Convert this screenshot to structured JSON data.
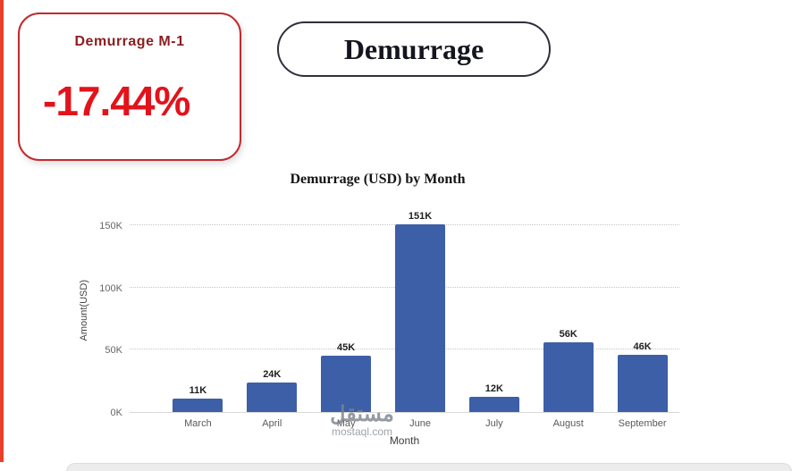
{
  "kpi_card": {
    "title": "Demurrage M-1",
    "value": "-17.44%"
  },
  "header": {
    "title": "Demurrage"
  },
  "watermark": {
    "name": "مستقل",
    "domain": "mostaql.com"
  },
  "chart_data": {
    "type": "bar",
    "title": "Demurrage (USD) by Month",
    "xlabel": "Month",
    "ylabel": "Amount(USD)",
    "categories": [
      "March",
      "April",
      "May",
      "June",
      "July",
      "August",
      "September"
    ],
    "values": [
      11,
      24,
      45,
      151,
      12,
      56,
      46
    ],
    "value_labels": [
      "11K",
      "24K",
      "45K",
      "151K",
      "12K",
      "56K",
      "46K"
    ],
    "y_ticks": [
      {
        "label": "0K",
        "k": 0
      },
      {
        "label": "50K",
        "k": 50
      },
      {
        "label": "100K",
        "k": 100
      },
      {
        "label": "150K",
        "k": 150
      }
    ],
    "ylim": [
      0,
      160
    ],
    "grid": "dotted-horizontal",
    "legend": "none",
    "bar_color": "#3d5fa8"
  },
  "colors": {
    "kpi_value_red": "#e2131b",
    "kpi_title_maroon": "#8b1d1f",
    "card_border_red": "#c22a2e",
    "pill_border_dark": "#2e2e3e",
    "accent_strip_red": "#e8402a",
    "bar_blue": "#3d5fa8"
  }
}
